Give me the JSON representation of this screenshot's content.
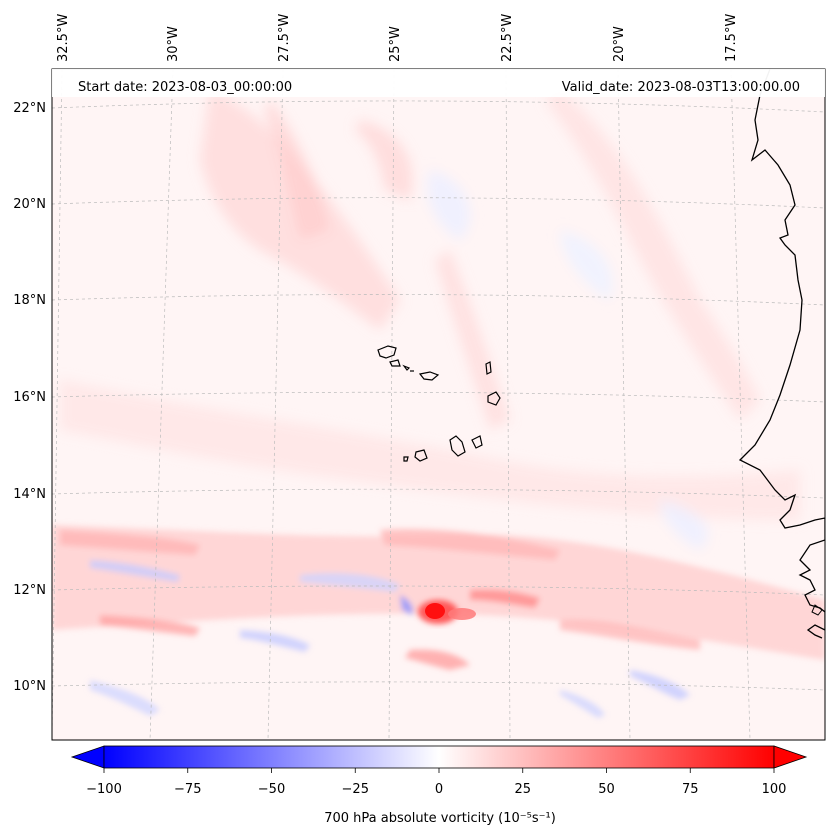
{
  "header": {
    "start_date": "Start date: 2023-08-03_00:00:00",
    "valid_date": "Valid_date: 2023-08-03T13:00:00.00"
  },
  "axes": {
    "longitude_labels": [
      "32.5°W",
      "30°W",
      "27.5°W",
      "25°W",
      "22.5°W",
      "20°W",
      "17.5°W"
    ],
    "latitude_labels": [
      "22°N",
      "20°N",
      "18°N",
      "16°N",
      "14°N",
      "12°N",
      "10°N"
    ]
  },
  "colorbar": {
    "label": "700 hPa absolute vorticity (10⁻⁵s⁻¹)",
    "ticks": [
      "−100",
      "−75",
      "−50",
      "−25",
      "0",
      "25",
      "50",
      "75",
      "100"
    ],
    "min": -100,
    "max": 100,
    "low_color": "#0000ff",
    "mid_color": "#ffffff",
    "high_color": "#ff0000"
  },
  "colors": {
    "coastline": "#000000",
    "gridline": "#bbbbbb",
    "ocean_base": "#fff6f6"
  }
}
